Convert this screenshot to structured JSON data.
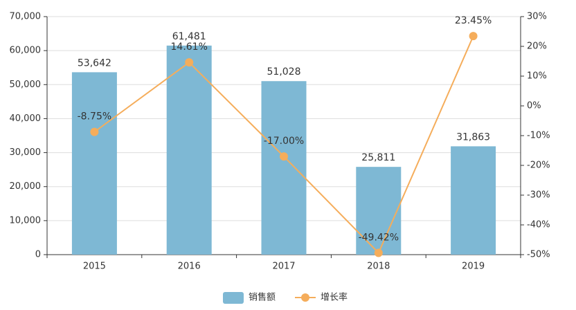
{
  "chart_data": {
    "type": "bar",
    "categories": [
      "2015",
      "2016",
      "2017",
      "2018",
      "2019"
    ],
    "series": [
      {
        "name": "销售额",
        "type": "bar",
        "color": "#7eb8d4",
        "values": [
          53642,
          61481,
          51028,
          25811,
          31863
        ],
        "value_labels": [
          "53,642",
          "61,481",
          "51,028",
          "25,811",
          "31,863"
        ]
      },
      {
        "name": "增长率",
        "type": "line",
        "axis": "y2",
        "color": "#f5ad5b",
        "values": [
          -8.75,
          14.61,
          -17.0,
          -49.42,
          23.45
        ],
        "value_labels": [
          "-8.75%",
          "14.61%",
          "-17.00%",
          "-49.42%",
          "23.45%"
        ]
      }
    ],
    "ylim": [
      0,
      70000
    ],
    "yticks": [
      0,
      {
        "value": 10000,
        "label": "10,000"
      },
      {
        "value": 20000,
        "label": "20,000"
      },
      {
        "value": 30000,
        "label": "30,000"
      },
      {
        "value": 40000,
        "label": "40,000"
      },
      {
        "value": 50000,
        "label": "50,000"
      },
      {
        "value": 60000,
        "label": "60,000"
      },
      {
        "value": 70000,
        "label": "70,000"
      }
    ],
    "y2lim": [
      -50,
      30
    ],
    "y2ticks": [
      {
        "value": -50,
        "label": "-50%"
      },
      {
        "value": -40,
        "label": "-40%"
      },
      {
        "value": -30,
        "label": "-30%"
      },
      {
        "value": -20,
        "label": "-20%"
      },
      {
        "value": -10,
        "label": "-10%"
      },
      {
        "value": 0,
        "label": "0%"
      },
      {
        "value": 10,
        "label": "10%"
      },
      {
        "value": 20,
        "label": "20%"
      },
      {
        "value": 30,
        "label": "30%"
      }
    ],
    "grid": true,
    "legend": "bottom"
  }
}
